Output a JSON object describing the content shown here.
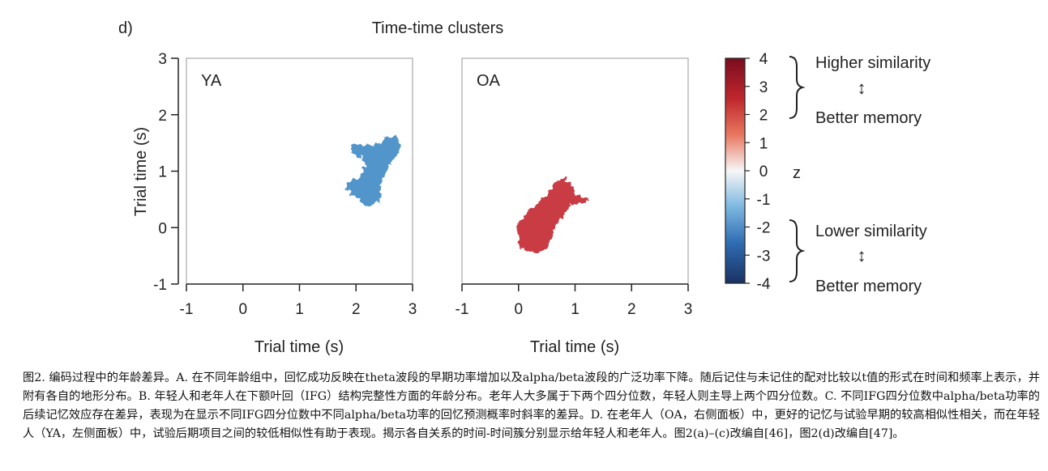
{
  "figure": {
    "panel_label": "d)",
    "title": "Time-time clusters",
    "xlabel": "Trial time (s)",
    "ylabel": "Trial time (s)",
    "colorbar": {
      "label": "z",
      "ticks": [
        "4",
        "3",
        "2",
        "1",
        "0",
        "-1",
        "-2",
        "-3",
        "-4"
      ],
      "range": [
        -4,
        4
      ],
      "colors": {
        "high": "#8b0f20",
        "mid_high": "#e06a5a",
        "zero": "#f7f7f7",
        "mid_low": "#6aaedc",
        "low": "#1f3f7a"
      }
    },
    "annotations": {
      "upper": {
        "title": "Higher similarity",
        "arrow": "↕",
        "subtitle": "Better memory"
      },
      "lower": {
        "title": "Lower similarity",
        "arrow": "↕",
        "subtitle": "Better memory"
      }
    }
  },
  "chart_data": [
    {
      "type": "heatmap",
      "panel": "YA",
      "xlabel": "Trial time (s)",
      "ylabel": "Trial time (s)",
      "xlim": [
        -1,
        3
      ],
      "ylim": [
        -1,
        3
      ],
      "xticks": [
        "-1",
        "0",
        "1",
        "2",
        "3"
      ],
      "yticks": [
        "-1",
        "0",
        "1",
        "2",
        "3"
      ],
      "cluster": {
        "z_sign": "negative",
        "color": "#4a90c8",
        "polygon": [
          [
            1.92,
            1.45
          ],
          [
            2.05,
            1.48
          ],
          [
            2.3,
            1.45
          ],
          [
            2.45,
            1.52
          ],
          [
            2.55,
            1.6
          ],
          [
            2.7,
            1.65
          ],
          [
            2.75,
            1.55
          ],
          [
            2.78,
            1.4
          ],
          [
            2.72,
            1.28
          ],
          [
            2.65,
            1.2
          ],
          [
            2.6,
            1.08
          ],
          [
            2.55,
            1.0
          ],
          [
            2.5,
            0.92
          ],
          [
            2.45,
            0.85
          ],
          [
            2.42,
            0.72
          ],
          [
            2.45,
            0.6
          ],
          [
            2.38,
            0.45
          ],
          [
            2.25,
            0.38
          ],
          [
            2.15,
            0.4
          ],
          [
            2.05,
            0.5
          ],
          [
            1.98,
            0.55
          ],
          [
            1.9,
            0.62
          ],
          [
            1.82,
            0.68
          ],
          [
            1.85,
            0.78
          ],
          [
            1.95,
            0.85
          ],
          [
            2.05,
            0.88
          ],
          [
            2.1,
            0.98
          ],
          [
            2.18,
            1.1
          ],
          [
            2.1,
            1.22
          ],
          [
            2.0,
            1.28
          ],
          [
            1.92,
            1.32
          ]
        ]
      }
    },
    {
      "type": "heatmap",
      "panel": "OA",
      "xlabel": "Trial time (s)",
      "ylabel": "Trial time (s)",
      "xlim": [
        -1,
        3
      ],
      "ylim": [
        -1,
        3
      ],
      "xticks": [
        "-1",
        "0",
        "1",
        "2",
        "3"
      ],
      "yticks": [
        "-1",
        "0",
        "1",
        "2",
        "3"
      ],
      "cluster": {
        "z_sign": "positive",
        "color": "#c8323a",
        "polygon": [
          [
            -0.02,
            0.05
          ],
          [
            0.08,
            0.18
          ],
          [
            0.2,
            0.3
          ],
          [
            0.35,
            0.45
          ],
          [
            0.45,
            0.55
          ],
          [
            0.55,
            0.65
          ],
          [
            0.62,
            0.78
          ],
          [
            0.72,
            0.85
          ],
          [
            0.82,
            0.88
          ],
          [
            0.9,
            0.8
          ],
          [
            0.95,
            0.68
          ],
          [
            1.0,
            0.58
          ],
          [
            1.12,
            0.55
          ],
          [
            1.25,
            0.5
          ],
          [
            1.2,
            0.45
          ],
          [
            1.05,
            0.42
          ],
          [
            0.92,
            0.4
          ],
          [
            0.85,
            0.3
          ],
          [
            0.8,
            0.18
          ],
          [
            0.7,
            0.1
          ],
          [
            0.65,
            0.0
          ],
          [
            0.6,
            -0.12
          ],
          [
            0.55,
            -0.25
          ],
          [
            0.5,
            -0.38
          ],
          [
            0.4,
            -0.43
          ],
          [
            0.3,
            -0.45
          ],
          [
            0.18,
            -0.42
          ],
          [
            0.05,
            -0.38
          ],
          [
            -0.02,
            -0.28
          ],
          [
            0.02,
            -0.15
          ],
          [
            -0.05,
            -0.05
          ]
        ]
      }
    }
  ],
  "caption": "图2. 编码过程中的年龄差异。A. 在不同年龄组中，回忆成功反映在theta波段的早期功率增加以及alpha/beta波段的广泛功率下降。随后记住与未记住的配对比较以t值的形式在时间和频率上表示，并附有各自的地形分布。B. 年轻人和老年人在下额叶回（IFG）结构完整性方面的年龄分布。老年人大多属于下两个四分位数，年轻人则主导上两个四分位数。C. 不同IFG四分位数中alpha/beta功率的后续记忆效应存在差异，表现为在显示不同IFG四分位数中不同alpha/beta功率的回忆预测概率时斜率的差异。D. 在老年人（OA，右侧面板）中，更好的记忆与试验早期的较高相似性相关，而在年轻人（YA，左侧面板）中，试验后期项目之间的较低相似性有助于表现。揭示各自关系的时间-时间簇分别显示给年轻人和老年人。图2(a)–(c)改编自[46]，图2(d)改编自[47]。"
}
